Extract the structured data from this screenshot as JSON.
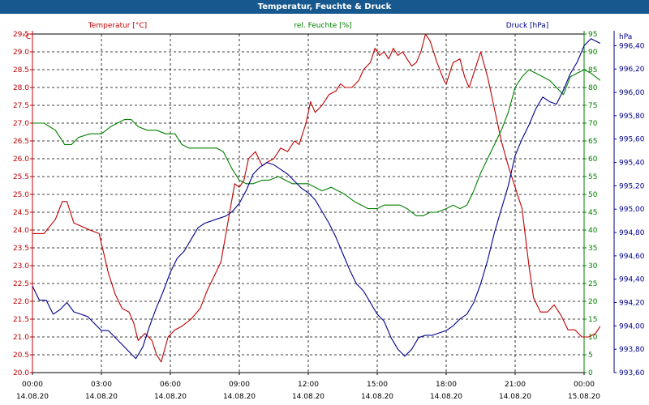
{
  "window": {
    "title": "Temperatur, Feuchte & Druck"
  },
  "chart_data": {
    "type": "line",
    "title": "Temperatur, Feuchte & Druck",
    "grid": true,
    "x": {
      "range": [
        "14.08.20 00:00",
        "15.08.20 00:00"
      ],
      "ticks": [
        {
          "time": "00:00",
          "date": "14.08.20"
        },
        {
          "time": "03:00",
          "date": "14.08.20"
        },
        {
          "time": "06:00",
          "date": "14.08.20"
        },
        {
          "time": "09:00",
          "date": "14.08.20"
        },
        {
          "time": "12:00",
          "date": "14.08.20"
        },
        {
          "time": "15:00",
          "date": "14.08.20"
        },
        {
          "time": "18:00",
          "date": "14.08.20"
        },
        {
          "time": "21:00",
          "date": "14.08.20"
        },
        {
          "time": "00:00",
          "date": "15.08.20"
        }
      ]
    },
    "axes": {
      "temperature": {
        "label": "Temperatur [°C]",
        "unit": "°C",
        "range": [
          20.0,
          29.5
        ],
        "ticks": [
          "20.0",
          "20.5",
          "21.0",
          "21.5",
          "22.0",
          "22.5",
          "23.0",
          "23.5",
          "24.0",
          "24.5",
          "25.0",
          "25.5",
          "26.0",
          "26.5",
          "27.0",
          "27.5",
          "28.0",
          "28.5",
          "29.0",
          "29.5"
        ],
        "color": "#c00000"
      },
      "humidity": {
        "label": "rel. Feuchte [%]",
        "unit": "%",
        "range": [
          0,
          95
        ],
        "ticks": [
          "0",
          "5",
          "10",
          "15",
          "20",
          "25",
          "30",
          "35",
          "40",
          "45",
          "50",
          "55",
          "60",
          "65",
          "70",
          "75",
          "80",
          "85",
          "90",
          "95"
        ],
        "color": "#008000"
      },
      "pressure": {
        "label": "Druck [hPa]",
        "unit": "hPa",
        "range": [
          993.6,
          996.5
        ],
        "ticks": [
          "993,60",
          "993,80",
          "994,00",
          "994,20",
          "994,40",
          "994,60",
          "994,80",
          "995,00",
          "995,20",
          "995,40",
          "995,60",
          "995,80",
          "996,00",
          "996,20",
          "996,40"
        ],
        "color": "#00008b"
      }
    },
    "series": [
      {
        "name": "Temperatur [°C]",
        "axis": "temperature",
        "color": "#c00000",
        "points": [
          [
            0.0,
            23.9
          ],
          [
            0.5,
            23.9
          ],
          [
            1.0,
            24.3
          ],
          [
            1.3,
            24.8
          ],
          [
            1.5,
            24.8
          ],
          [
            1.8,
            24.2
          ],
          [
            2.5,
            24.0
          ],
          [
            2.9,
            23.9
          ],
          [
            3.3,
            22.8
          ],
          [
            3.6,
            22.2
          ],
          [
            3.9,
            21.8
          ],
          [
            4.2,
            21.7
          ],
          [
            4.4,
            21.4
          ],
          [
            4.6,
            20.9
          ],
          [
            4.9,
            21.1
          ],
          [
            5.2,
            20.9
          ],
          [
            5.4,
            20.5
          ],
          [
            5.6,
            20.3
          ],
          [
            5.9,
            21.0
          ],
          [
            6.2,
            21.2
          ],
          [
            6.5,
            21.3
          ],
          [
            6.9,
            21.5
          ],
          [
            7.3,
            21.8
          ],
          [
            7.6,
            22.3
          ],
          [
            7.9,
            22.7
          ],
          [
            8.2,
            23.1
          ],
          [
            8.5,
            24.2
          ],
          [
            8.8,
            25.3
          ],
          [
            9.0,
            25.2
          ],
          [
            9.2,
            25.4
          ],
          [
            9.4,
            26.0
          ],
          [
            9.7,
            26.2
          ],
          [
            10.0,
            25.8
          ],
          [
            10.2,
            25.9
          ],
          [
            10.5,
            26.0
          ],
          [
            10.8,
            26.3
          ],
          [
            11.1,
            26.2
          ],
          [
            11.4,
            26.5
          ],
          [
            11.6,
            26.4
          ],
          [
            11.9,
            27.0
          ],
          [
            12.1,
            27.6
          ],
          [
            12.3,
            27.3
          ],
          [
            12.6,
            27.5
          ],
          [
            12.9,
            27.8
          ],
          [
            13.2,
            27.9
          ],
          [
            13.4,
            28.1
          ],
          [
            13.6,
            28.0
          ],
          [
            13.9,
            28.0
          ],
          [
            14.2,
            28.2
          ],
          [
            14.4,
            28.5
          ],
          [
            14.7,
            28.7
          ],
          [
            14.9,
            29.1
          ],
          [
            15.1,
            28.9
          ],
          [
            15.3,
            29.0
          ],
          [
            15.5,
            28.8
          ],
          [
            15.7,
            29.1
          ],
          [
            15.9,
            28.9
          ],
          [
            16.1,
            29.0
          ],
          [
            16.3,
            28.8
          ],
          [
            16.5,
            28.6
          ],
          [
            16.7,
            28.7
          ],
          [
            16.9,
            29.0
          ],
          [
            17.1,
            29.5
          ],
          [
            17.3,
            29.3
          ],
          [
            17.6,
            28.7
          ],
          [
            17.9,
            28.2
          ],
          [
            18.0,
            28.1
          ],
          [
            18.3,
            28.7
          ],
          [
            18.6,
            28.8
          ],
          [
            18.8,
            28.3
          ],
          [
            19.0,
            28.0
          ],
          [
            19.3,
            28.6
          ],
          [
            19.5,
            29.0
          ],
          [
            19.8,
            28.3
          ],
          [
            20.1,
            27.4
          ],
          [
            20.4,
            26.5
          ],
          [
            20.7,
            25.8
          ],
          [
            21.0,
            25.2
          ],
          [
            21.3,
            24.6
          ],
          [
            21.6,
            23.0
          ],
          [
            21.8,
            22.1
          ],
          [
            22.1,
            21.7
          ],
          [
            22.4,
            21.7
          ],
          [
            22.7,
            21.9
          ],
          [
            23.0,
            21.6
          ],
          [
            23.3,
            21.2
          ],
          [
            23.6,
            21.2
          ],
          [
            23.9,
            21.0
          ],
          [
            24.2,
            21.0
          ],
          [
            24.5,
            21.1
          ],
          [
            24.7,
            21.3
          ]
        ]
      },
      {
        "name": "rel. Feuchte [%]",
        "axis": "humidity",
        "color": "#008000",
        "points": [
          [
            0.0,
            70
          ],
          [
            0.5,
            70
          ],
          [
            1.0,
            68
          ],
          [
            1.4,
            64
          ],
          [
            1.7,
            64
          ],
          [
            2.0,
            66
          ],
          [
            2.5,
            67
          ],
          [
            3.0,
            67
          ],
          [
            3.4,
            69
          ],
          [
            3.7,
            70
          ],
          [
            4.0,
            71
          ],
          [
            4.3,
            71
          ],
          [
            4.6,
            69
          ],
          [
            5.0,
            68
          ],
          [
            5.4,
            68
          ],
          [
            5.8,
            67
          ],
          [
            6.2,
            67
          ],
          [
            6.5,
            64
          ],
          [
            6.8,
            63
          ],
          [
            7.2,
            63
          ],
          [
            7.6,
            63
          ],
          [
            8.0,
            63
          ],
          [
            8.3,
            62
          ],
          [
            8.7,
            57
          ],
          [
            9.0,
            54
          ],
          [
            9.3,
            53
          ],
          [
            9.6,
            53
          ],
          [
            10.0,
            54
          ],
          [
            10.3,
            54
          ],
          [
            10.7,
            55
          ],
          [
            11.0,
            54
          ],
          [
            11.3,
            53
          ],
          [
            11.6,
            53
          ],
          [
            12.0,
            53
          ],
          [
            12.3,
            52
          ],
          [
            12.6,
            51
          ],
          [
            13.0,
            52
          ],
          [
            13.3,
            51
          ],
          [
            13.6,
            50
          ],
          [
            14.0,
            48
          ],
          [
            14.3,
            47
          ],
          [
            14.6,
            46
          ],
          [
            15.0,
            46
          ],
          [
            15.3,
            47
          ],
          [
            15.7,
            47
          ],
          [
            16.0,
            47
          ],
          [
            16.3,
            46
          ],
          [
            16.7,
            44
          ],
          [
            17.0,
            44
          ],
          [
            17.3,
            45
          ],
          [
            17.6,
            45
          ],
          [
            18.0,
            46
          ],
          [
            18.3,
            47
          ],
          [
            18.6,
            46
          ],
          [
            18.9,
            47
          ],
          [
            19.2,
            51
          ],
          [
            19.5,
            56
          ],
          [
            19.8,
            60
          ],
          [
            20.1,
            64
          ],
          [
            20.4,
            68
          ],
          [
            20.7,
            73
          ],
          [
            21.0,
            80
          ],
          [
            21.3,
            83
          ],
          [
            21.6,
            85
          ],
          [
            21.9,
            84
          ],
          [
            22.2,
            83
          ],
          [
            22.5,
            82
          ],
          [
            22.8,
            80
          ],
          [
            23.1,
            78
          ],
          [
            23.4,
            83
          ],
          [
            23.7,
            84
          ],
          [
            24.0,
            85
          ],
          [
            24.3,
            84
          ],
          [
            24.5,
            83
          ],
          [
            24.7,
            82
          ]
        ]
      },
      {
        "name": "Druck [hPa]",
        "axis": "pressure",
        "color": "#00008b",
        "points": [
          [
            0.0,
            994.34
          ],
          [
            0.3,
            994.22
          ],
          [
            0.6,
            994.22
          ],
          [
            0.9,
            994.1
          ],
          [
            1.2,
            994.14
          ],
          [
            1.5,
            994.2
          ],
          [
            1.8,
            994.12
          ],
          [
            2.1,
            994.1
          ],
          [
            2.4,
            994.08
          ],
          [
            2.7,
            994.02
          ],
          [
            3.0,
            993.96
          ],
          [
            3.3,
            993.96
          ],
          [
            3.6,
            993.9
          ],
          [
            3.9,
            993.84
          ],
          [
            4.2,
            993.78
          ],
          [
            4.5,
            993.72
          ],
          [
            4.8,
            993.82
          ],
          [
            5.1,
            994.0
          ],
          [
            5.4,
            994.16
          ],
          [
            5.7,
            994.3
          ],
          [
            6.0,
            994.46
          ],
          [
            6.3,
            994.58
          ],
          [
            6.6,
            994.64
          ],
          [
            6.9,
            994.74
          ],
          [
            7.2,
            994.84
          ],
          [
            7.5,
            994.88
          ],
          [
            7.8,
            994.9
          ],
          [
            8.1,
            994.92
          ],
          [
            8.4,
            994.94
          ],
          [
            8.7,
            994.98
          ],
          [
            9.0,
            995.05
          ],
          [
            9.3,
            995.16
          ],
          [
            9.6,
            995.3
          ],
          [
            9.9,
            995.36
          ],
          [
            10.2,
            995.4
          ],
          [
            10.5,
            995.38
          ],
          [
            10.8,
            995.34
          ],
          [
            11.1,
            995.3
          ],
          [
            11.4,
            995.24
          ],
          [
            11.7,
            995.18
          ],
          [
            12.0,
            995.14
          ],
          [
            12.3,
            995.08
          ],
          [
            12.6,
            994.98
          ],
          [
            12.9,
            994.88
          ],
          [
            13.2,
            994.76
          ],
          [
            13.5,
            994.62
          ],
          [
            13.8,
            994.48
          ],
          [
            14.1,
            994.36
          ],
          [
            14.4,
            994.3
          ],
          [
            14.7,
            994.2
          ],
          [
            15.0,
            994.1
          ],
          [
            15.3,
            994.04
          ],
          [
            15.6,
            993.9
          ],
          [
            15.9,
            993.8
          ],
          [
            16.2,
            993.74
          ],
          [
            16.5,
            993.8
          ],
          [
            16.8,
            993.9
          ],
          [
            17.1,
            993.92
          ],
          [
            17.4,
            993.92
          ],
          [
            17.7,
            993.94
          ],
          [
            18.0,
            993.96
          ],
          [
            18.3,
            994.0
          ],
          [
            18.6,
            994.06
          ],
          [
            18.9,
            994.1
          ],
          [
            19.2,
            994.2
          ],
          [
            19.5,
            994.36
          ],
          [
            19.8,
            994.56
          ],
          [
            20.1,
            994.8
          ],
          [
            20.4,
            995.0
          ],
          [
            20.7,
            995.2
          ],
          [
            21.0,
            995.46
          ],
          [
            21.3,
            995.6
          ],
          [
            21.6,
            995.72
          ],
          [
            21.9,
            995.86
          ],
          [
            22.2,
            995.96
          ],
          [
            22.5,
            995.92
          ],
          [
            22.8,
            995.9
          ],
          [
            23.1,
            996.02
          ],
          [
            23.4,
            996.16
          ],
          [
            23.7,
            996.26
          ],
          [
            24.0,
            996.4
          ],
          [
            24.3,
            996.46
          ],
          [
            24.5,
            996.44
          ],
          [
            24.7,
            996.42
          ]
        ]
      }
    ]
  }
}
